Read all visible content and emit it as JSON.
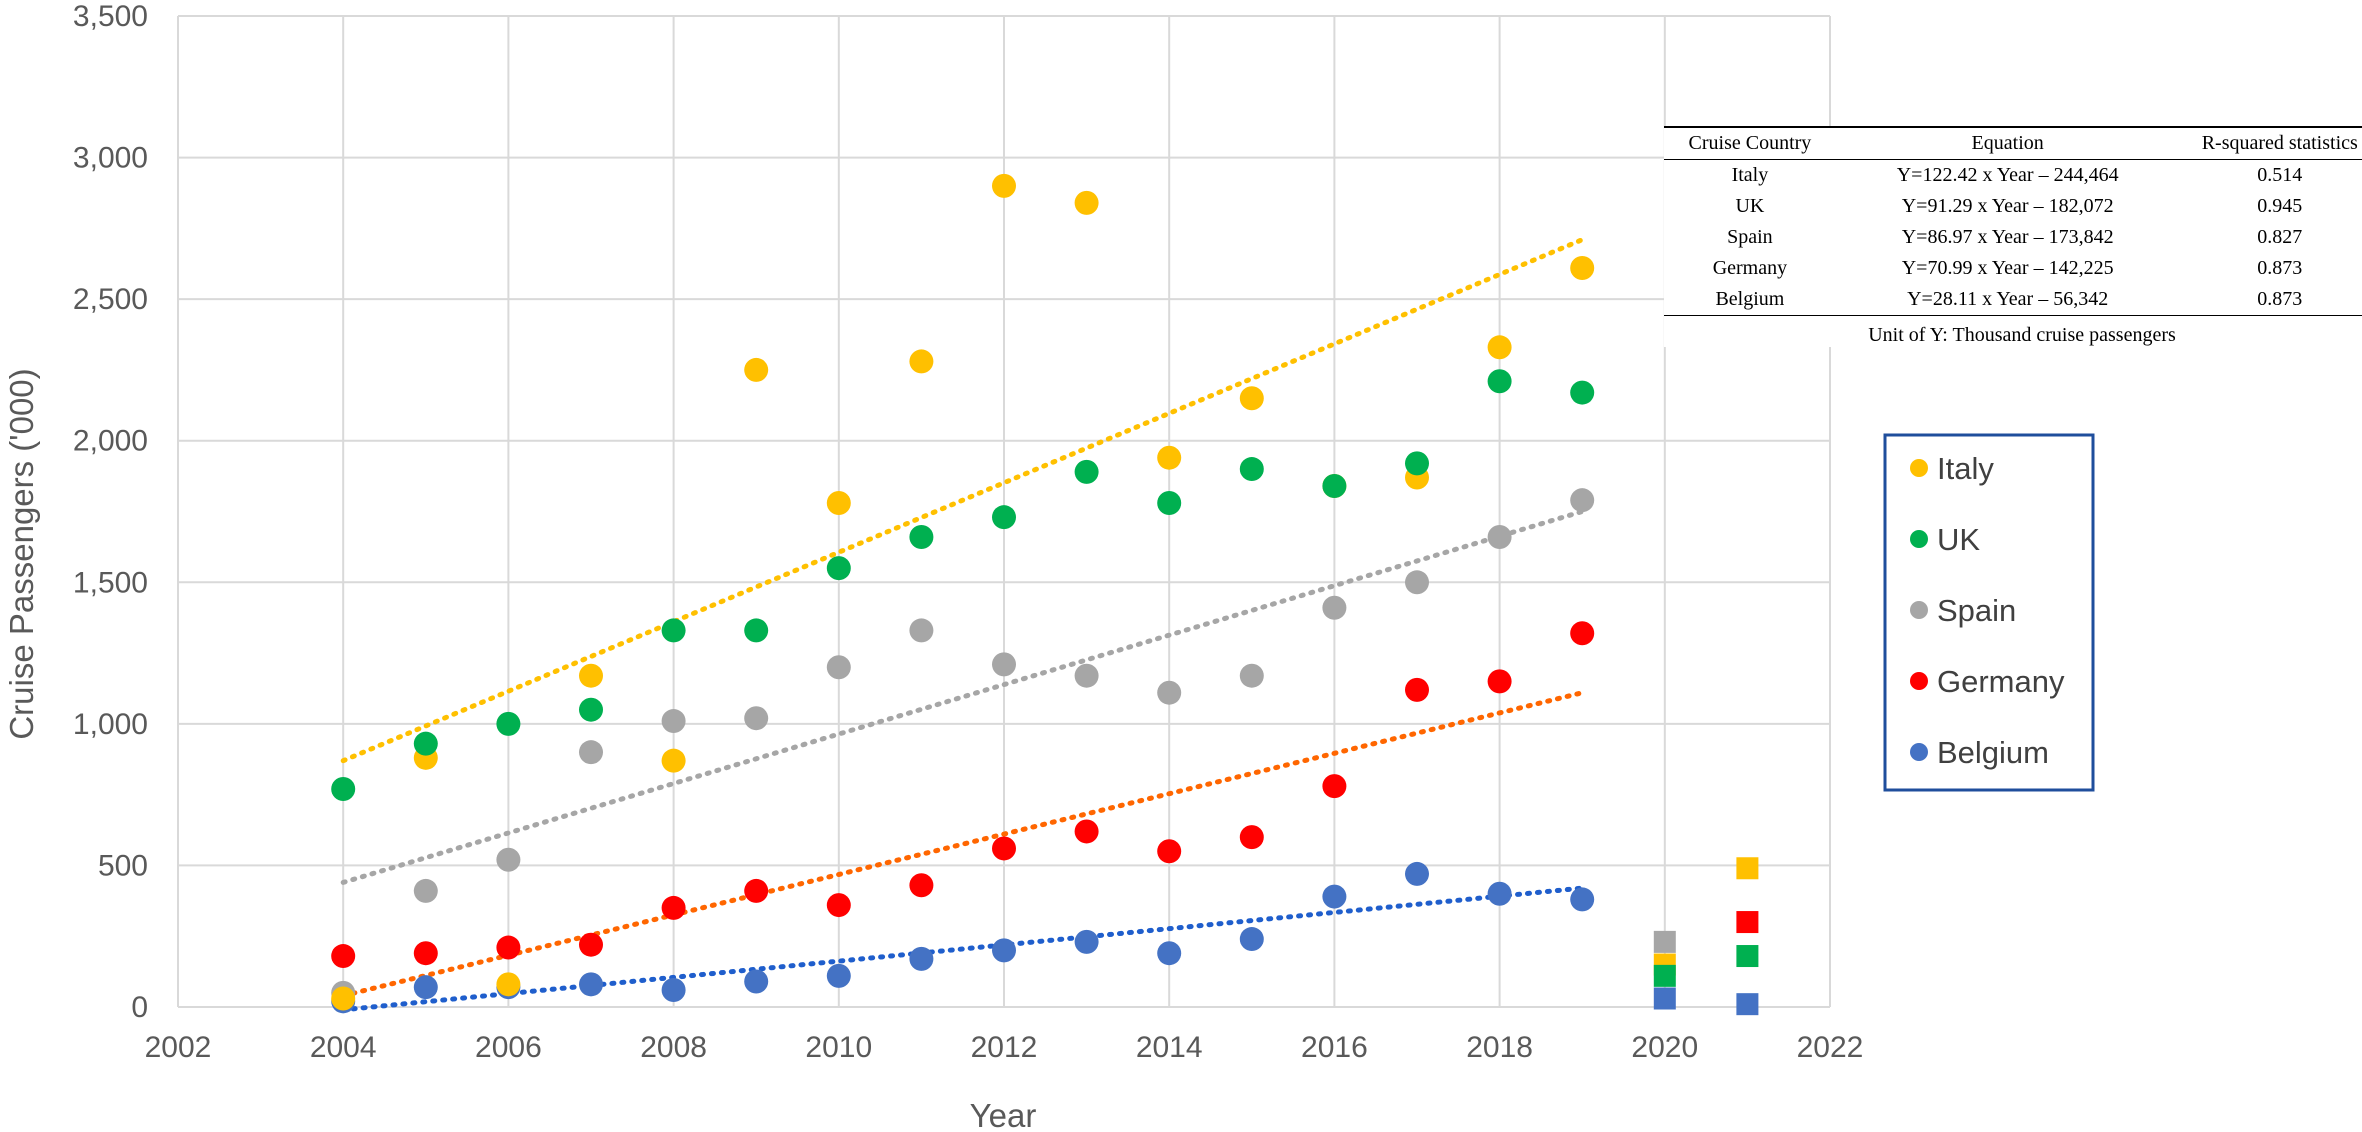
{
  "chart_data": {
    "type": "scatter",
    "title": "",
    "xlabel": "Year",
    "ylabel": "Cruise Passengers ('000)",
    "xlim": [
      2002,
      2022
    ],
    "ylim": [
      0,
      3500
    ],
    "x_ticks": [
      "2002",
      "2004",
      "2006",
      "2008",
      "2010",
      "2012",
      "2014",
      "2016",
      "2018",
      "2020",
      "2022"
    ],
    "y_ticks": [
      "0",
      "500",
      "1,000",
      "1,500",
      "2,000",
      "2,500",
      "3,000",
      "3,500"
    ],
    "years": [
      2004,
      2005,
      2006,
      2007,
      2008,
      2009,
      2010,
      2011,
      2012,
      2013,
      2014,
      2015,
      2016,
      2017,
      2018,
      2019
    ],
    "series": [
      {
        "name": "Italy",
        "color": "#FFC000",
        "values": [
          30,
          880,
          80,
          1170,
          870,
          2250,
          1780,
          2280,
          2900,
          2840,
          1940,
          2150,
          1840,
          1870,
          2330,
          2610
        ],
        "trend": {
          "x0": 2004,
          "y0": 870,
          "x1": 2019,
          "y1": 2710
        },
        "covid": {
          "2020": 150,
          "2021": 490
        }
      },
      {
        "name": "UK",
        "color": "#00B050",
        "values": [
          770,
          930,
          1000,
          1050,
          1330,
          1330,
          1550,
          1660,
          1730,
          1890,
          1780,
          1900,
          1840,
          1920,
          2210,
          2170
        ],
        "trend": null,
        "covid": {
          "2020": 110,
          "2021": 180
        }
      },
      {
        "name": "Spain",
        "color": "#A6A6A6",
        "values": [
          50,
          410,
          520,
          900,
          1010,
          1020,
          1200,
          1330,
          1210,
          1170,
          1110,
          1170,
          1410,
          1500,
          1660,
          1790
        ],
        "trend": {
          "x0": 2004,
          "y0": 440,
          "x1": 2019,
          "y1": 1750
        },
        "covid": {
          "2020": 230,
          "2021": null
        }
      },
      {
        "name": "Germany",
        "color": "#FF0000",
        "values": [
          180,
          190,
          210,
          220,
          350,
          410,
          360,
          430,
          560,
          620,
          550,
          600,
          780,
          1120,
          1150,
          1320
        ],
        "trend": {
          "x0": 2004,
          "y0": 40,
          "x1": 2019,
          "y1": 1110
        },
        "covid": {
          "2020": null,
          "2021": 300
        }
      },
      {
        "name": "Belgium",
        "color": "#4472C4",
        "values": [
          20,
          70,
          70,
          80,
          60,
          90,
          110,
          170,
          200,
          230,
          190,
          240,
          390,
          470,
          400,
          380
        ],
        "trend": {
          "x0": 2004,
          "y0": -10,
          "x1": 2019,
          "y1": 420
        },
        "covid": {
          "2020": 30,
          "2021": 10
        }
      }
    ],
    "trend_colors": {
      "Italy": "#FFC000",
      "Spain": "#A6A6A6",
      "Germany": "#FF6600",
      "Belgium": "#1F5ECC"
    },
    "legend": [
      "Italy",
      "UK",
      "Spain",
      "Germany",
      "Belgium"
    ],
    "legend_position": "right",
    "legend_border": "#1F4E9C",
    "grid": true
  },
  "table": {
    "headers": [
      "Cruise Country",
      "Equation",
      "R-squared statistics"
    ],
    "rows": [
      [
        "Italy",
        "Y=122.42 x Year – 244,464",
        "0.514"
      ],
      [
        "UK",
        "Y=91.29 x Year – 182,072",
        "0.945"
      ],
      [
        "Spain",
        "Y=86.97 x Year – 173,842",
        "0.827"
      ],
      [
        "Germany",
        "Y=70.99 x Year – 142,225",
        "0.873"
      ],
      [
        "Belgium",
        "Y=28.11 x Year – 56,342",
        "0.873"
      ]
    ],
    "note": "Unit of Y: Thousand cruise passengers"
  }
}
